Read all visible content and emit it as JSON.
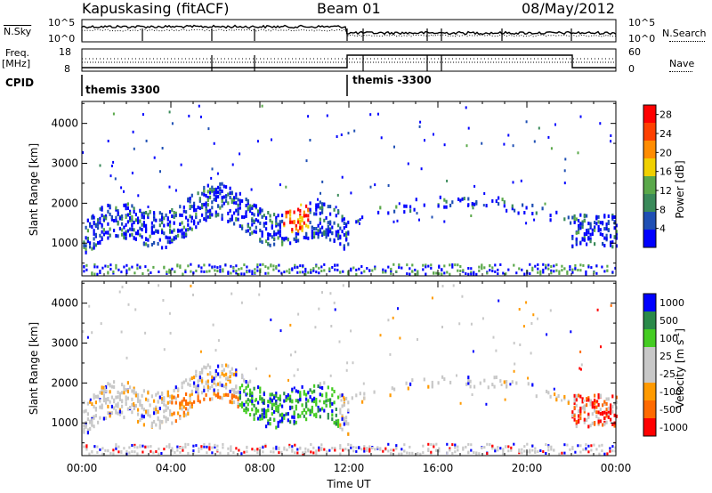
{
  "header": {
    "title": "Kapuskasing (fitACF)",
    "beam": "Beam 01",
    "date": "08/May/2012"
  },
  "panels": {
    "nsky": {
      "label": "N.Sky",
      "ticks": [
        "10^5",
        "10^0"
      ]
    },
    "nsearch": {
      "label": "N.Search",
      "ticks": [
        "10^5",
        "10^0"
      ]
    },
    "freq": {
      "label_line1": "Freq.",
      "label_line2": "[MHz]",
      "ticks": [
        "18",
        "8"
      ]
    },
    "nave": {
      "label": "Nave",
      "ticks": [
        "60",
        "0"
      ]
    },
    "cpid": {
      "label": "CPID",
      "segments": [
        "themis 3300",
        "themis -3300"
      ]
    }
  },
  "colors": {
    "power_scale": [
      "#0000ff",
      "#1f4fb4",
      "#3a8a5a",
      "#5aa84a",
      "#f0d000",
      "#ff8c00",
      "#ff4000",
      "#ff0000"
    ],
    "velocity_scale": [
      "#ff0000",
      "#ff6a00",
      "#ff9a00",
      "#c8c8c8",
      "#c8c8c8",
      "#44cc22",
      "#2a8a4a",
      "#0000ff"
    ]
  },
  "chart_data": [
    {
      "type": "heatmap",
      "name": "Power",
      "xlabel": "",
      "ylabel": "Slant Range [km]",
      "x_ticks": [
        "00:00",
        "04:00",
        "08:00",
        "12:00",
        "16:00",
        "20:00",
        "00:00"
      ],
      "x_range_hours": [
        0,
        24
      ],
      "y_range_km": [
        180,
        4550
      ],
      "y_ticks": [
        1000,
        2000,
        3000,
        4000
      ],
      "colorbar": {
        "label": "Power [dB]",
        "ticks": [
          4,
          8,
          12,
          16,
          20,
          24,
          28
        ],
        "range": [
          0,
          30
        ]
      }
    },
    {
      "type": "heatmap",
      "name": "Velocity",
      "xlabel": "Time UT",
      "ylabel": "Slant Range [km]",
      "x_ticks": [
        "00:00",
        "04:00",
        "08:00",
        "12:00",
        "16:00",
        "20:00",
        "00:00"
      ],
      "x_range_hours": [
        0,
        24
      ],
      "y_range_km": [
        180,
        4550
      ],
      "y_ticks": [
        1000,
        2000,
        3000,
        4000
      ],
      "colorbar": {
        "label": "Velocity [m s^-1]",
        "ticks": [
          "1000",
          "500",
          "100",
          "25",
          "-25",
          "-100",
          "-500",
          "-1000"
        ]
      }
    }
  ]
}
